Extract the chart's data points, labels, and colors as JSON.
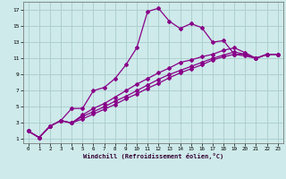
{
  "xlabel": "Windchill (Refroidissement éolien,°C)",
  "background_color": "#ceeaea",
  "grid_color": "#aacccc",
  "line_color": "#880088",
  "xlim": [
    -0.5,
    23.5
  ],
  "ylim": [
    0.5,
    18
  ],
  "xticks": [
    0,
    1,
    2,
    3,
    4,
    5,
    6,
    7,
    8,
    9,
    10,
    11,
    12,
    13,
    14,
    15,
    16,
    17,
    18,
    19,
    20,
    21,
    22,
    23
  ],
  "yticks": [
    1,
    3,
    5,
    7,
    9,
    11,
    13,
    15,
    17
  ],
  "series": [
    [
      2.0,
      1.2,
      2.6,
      3.3,
      4.8,
      4.8,
      7.0,
      7.4,
      8.5,
      10.2,
      12.3,
      16.8,
      17.2,
      15.6,
      14.7,
      15.3,
      14.8,
      13.0,
      13.2,
      11.5,
      11.5,
      11.0,
      11.5,
      11.5
    ],
    [
      2.0,
      1.2,
      2.6,
      3.3,
      3.0,
      4.0,
      4.8,
      5.4,
      6.2,
      7.0,
      7.8,
      8.5,
      9.2,
      9.8,
      10.5,
      10.8,
      11.2,
      11.5,
      12.0,
      12.3,
      11.7,
      11.0,
      11.5,
      11.5
    ],
    [
      2.0,
      1.2,
      2.6,
      3.3,
      3.0,
      3.8,
      4.4,
      5.0,
      5.7,
      6.3,
      7.0,
      7.7,
      8.4,
      9.0,
      9.5,
      10.0,
      10.5,
      11.0,
      11.4,
      11.8,
      11.5,
      11.0,
      11.5,
      11.5
    ],
    [
      2.0,
      1.2,
      2.6,
      3.3,
      3.0,
      3.5,
      4.1,
      4.7,
      5.3,
      6.0,
      6.6,
      7.3,
      7.9,
      8.6,
      9.2,
      9.7,
      10.2,
      10.8,
      11.2,
      11.5,
      11.3,
      11.0,
      11.5,
      11.5
    ]
  ]
}
